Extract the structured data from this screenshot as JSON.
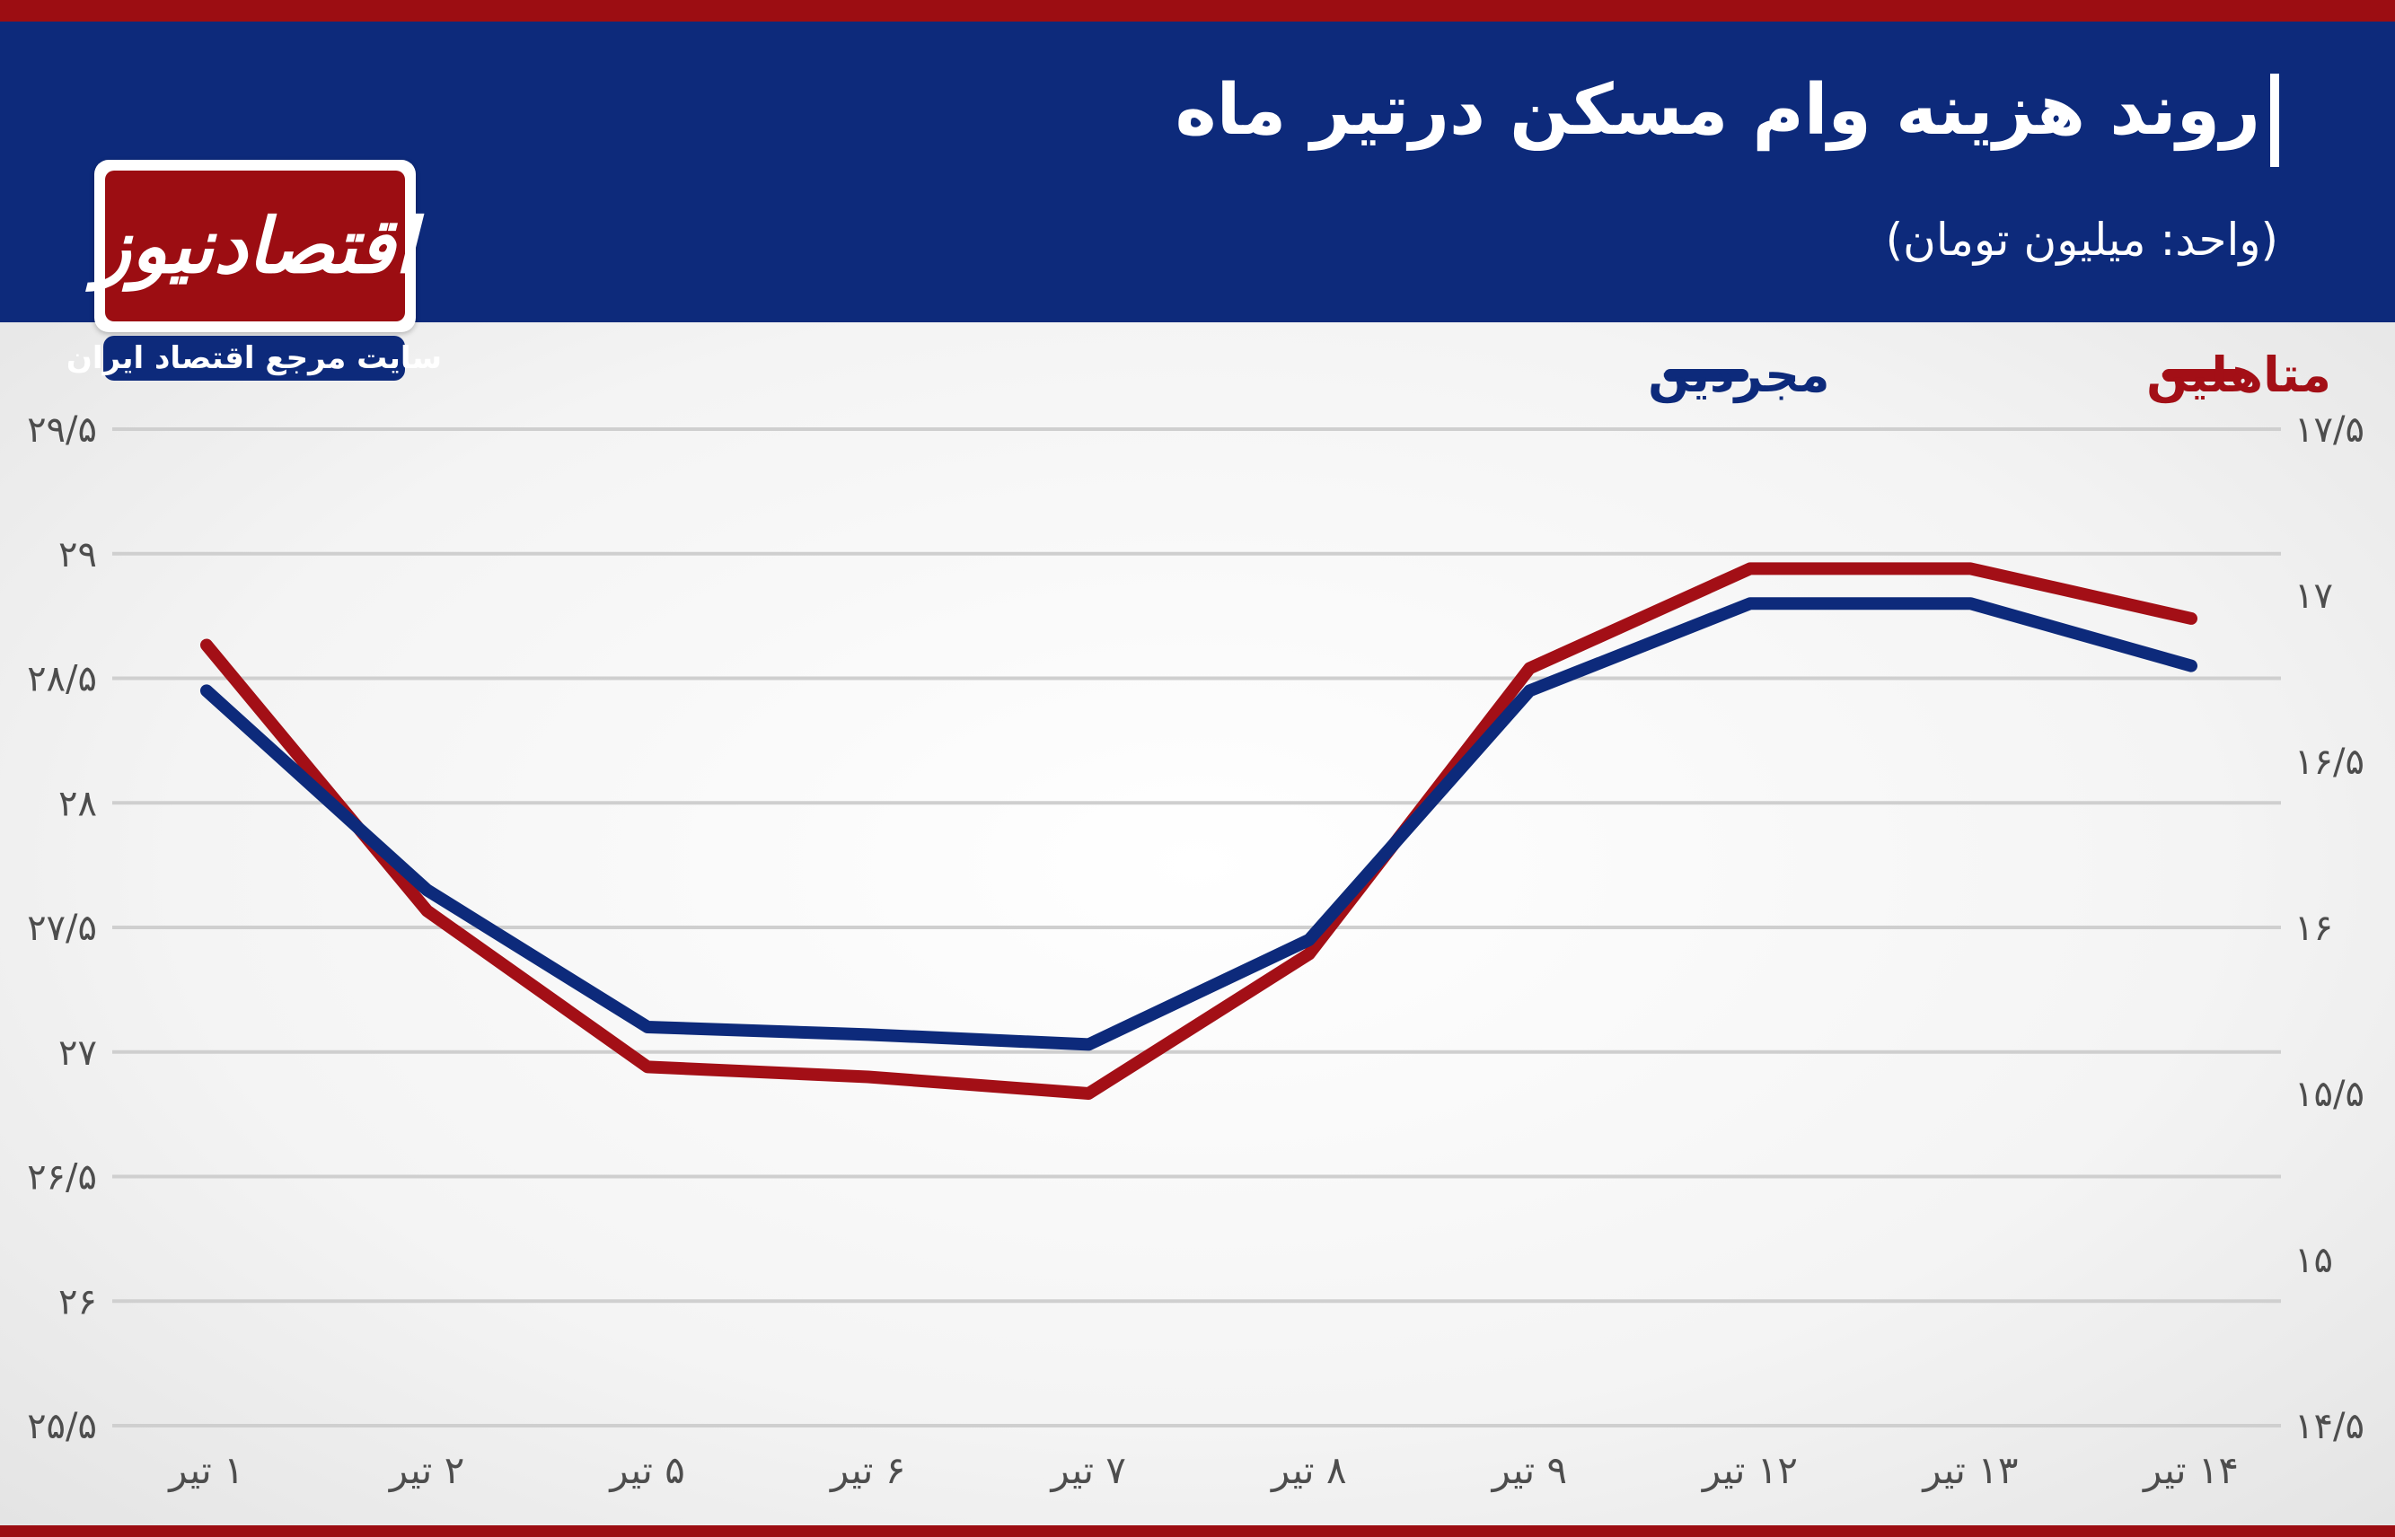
{
  "header": {
    "title": "روند هزینه وام مسکن درتیر ماه",
    "subtitle": "(واحد: میلیون تومان)"
  },
  "logo": {
    "name": "اقتصادنیوز",
    "tagline": "سایت مرجع اقتصاد ایران"
  },
  "colors": {
    "header_bg": "#0d2a7b",
    "accent_red": "#9c0d12",
    "married_line": "#a30f16",
    "single_line": "#0d2a7b"
  },
  "chart_data": {
    "type": "line",
    "categories": [
      "۱ تیر",
      "۲ تیر",
      "۵ تیر",
      "۶ تیر",
      "۷ تیر",
      "۸ تیر",
      "۹ تیر",
      "۱۲ تیر",
      "۱۳ تیر",
      "۱۴ تیر"
    ],
    "y_left": {
      "ticks": [
        25.5,
        26,
        26.5,
        27,
        27.5,
        28,
        28.5,
        29,
        29.5
      ],
      "tick_labels": [
        "۲۵/۵",
        "۲۶",
        "۲۶/۵",
        "۲۷",
        "۲۷/۵",
        "۲۸",
        "۲۸/۵",
        "۲۹",
        "۲۹/۵"
      ],
      "range": [
        25.5,
        29.5
      ]
    },
    "y_right": {
      "ticks": [
        14.5,
        15,
        15.5,
        16,
        16.5,
        17,
        17.5
      ],
      "tick_labels": [
        "۱۴/۵",
        "۱۵",
        "۱۵/۵",
        "۱۶",
        "۱۶/۵",
        "۱۷",
        "۱۷/۵"
      ],
      "range": [
        14.5,
        17.5
      ]
    },
    "series": [
      {
        "name": "مجردین",
        "axis": "left",
        "values": [
          28.45,
          27.65,
          27.1,
          27.07,
          27.03,
          27.45,
          28.45,
          28.8,
          28.8,
          28.55
        ]
      },
      {
        "name": "متاهلین",
        "axis": "right",
        "values": [
          16.85,
          16.05,
          15.58,
          15.55,
          15.5,
          15.92,
          16.78,
          17.08,
          17.08,
          16.93
        ]
      }
    ],
    "grid": true,
    "legend_position": "top"
  }
}
